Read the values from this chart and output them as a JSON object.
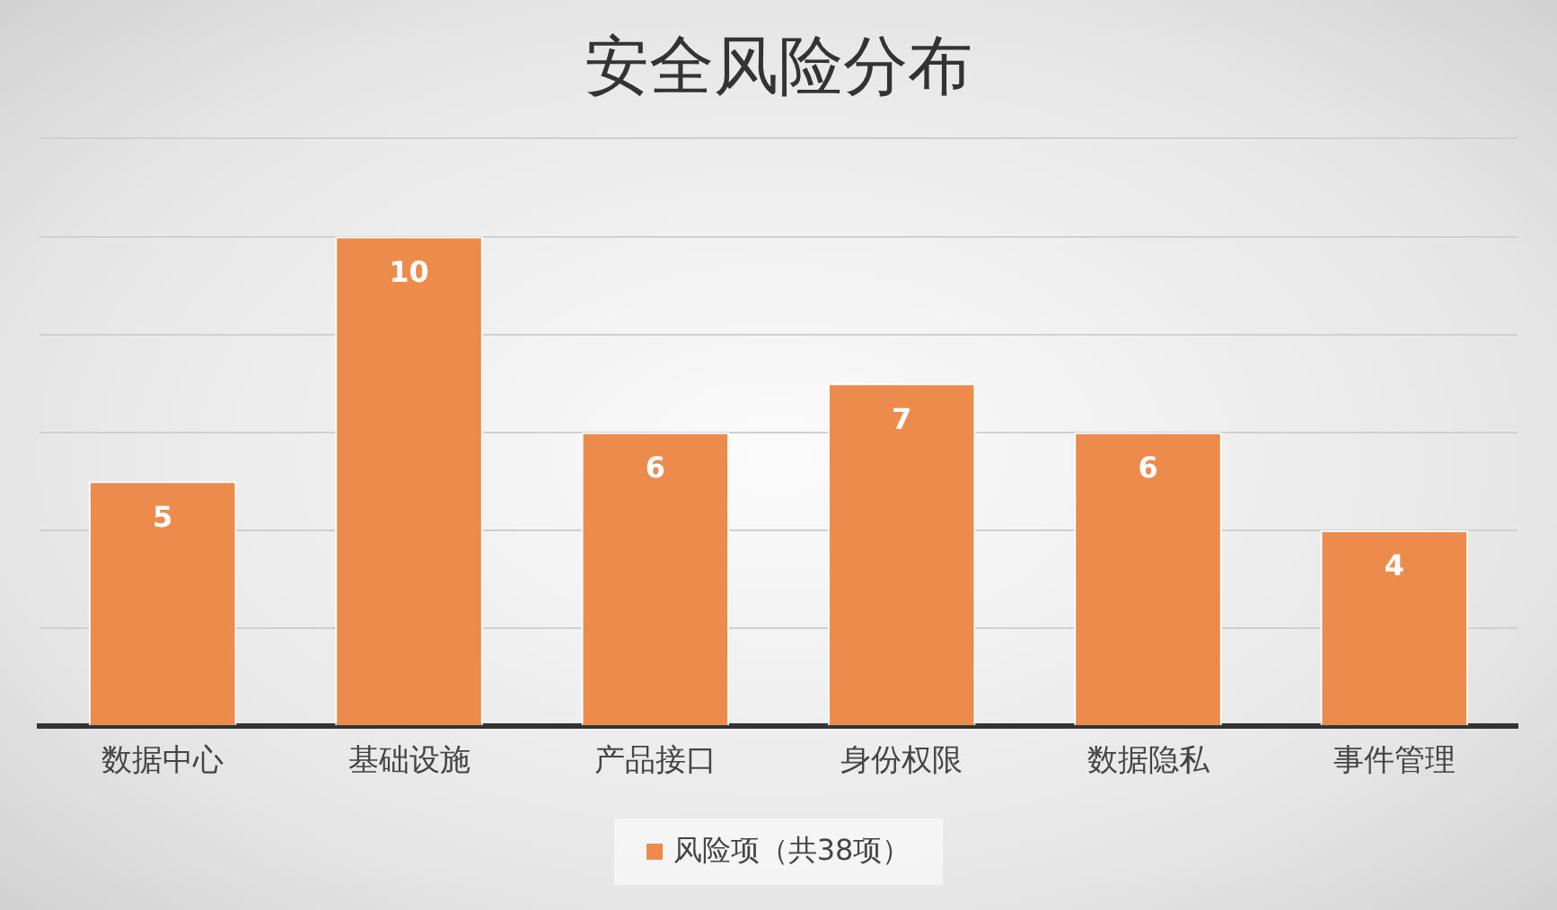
{
  "chart_data": {
    "type": "bar",
    "title": "安全风险分布",
    "categories": [
      "数据中心",
      "基础设施",
      "产品接口",
      "身份权限",
      "数据隐私",
      "事件管理"
    ],
    "series": [
      {
        "name": "风险项（共38项）",
        "color": "#ed8b4c",
        "values": [
          5,
          10,
          6,
          7,
          6,
          4
        ]
      }
    ],
    "ylim": [
      0,
      12
    ],
    "yticks": [
      {
        "value": 0,
        "label": null
      },
      {
        "value": 2,
        "label": null
      },
      {
        "value": 4,
        "label": null
      },
      {
        "value": 6,
        "label": null
      },
      {
        "value": 8,
        "label": null
      },
      {
        "value": 10,
        "label": null
      },
      {
        "value": 12,
        "label": null
      }
    ],
    "tick_labels": "x",
    "grid": "y",
    "legend": "bottom",
    "data_labels": true
  }
}
